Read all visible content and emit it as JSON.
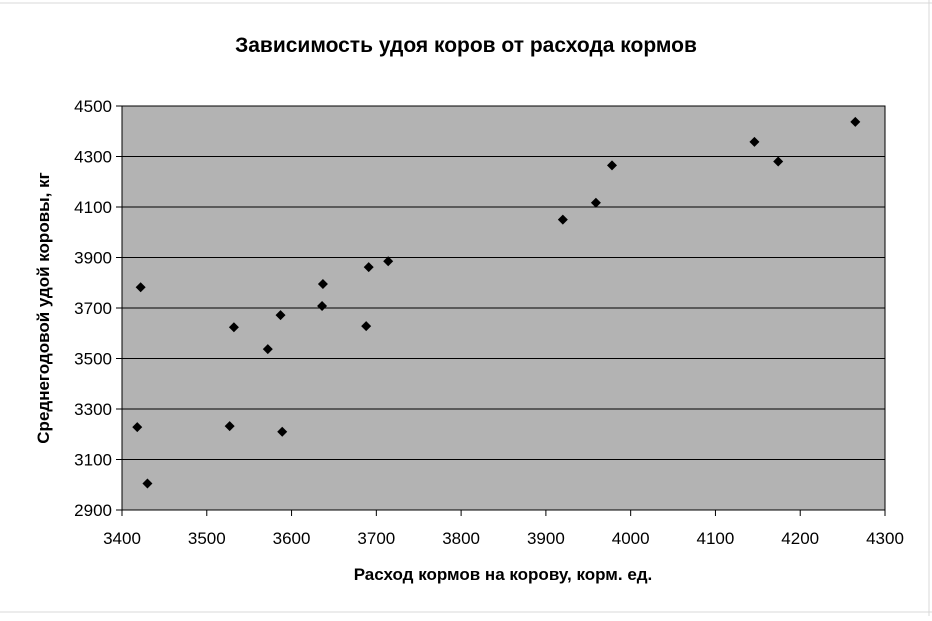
{
  "chart_data": {
    "type": "scatter",
    "title": "Зависимость удоя коров от расхода кормов",
    "xlabel": "Расход кормов на корову, корм. ед.",
    "ylabel": "Среднегодовой удой коровы, кг",
    "xlim": [
      3400,
      4300
    ],
    "ylim": [
      2900,
      4500
    ],
    "xticks": [
      3400,
      3500,
      3600,
      3700,
      3800,
      3900,
      4000,
      4100,
      4200,
      4300
    ],
    "yticks": [
      2900,
      3100,
      3300,
      3500,
      3700,
      3900,
      4100,
      4300,
      4500
    ],
    "grid": "horizontal",
    "plot_background": "#b3b3b3",
    "marker_color": "#000000",
    "marker": "diamond",
    "points": [
      {
        "x": 3418,
        "y": 3228
      },
      {
        "x": 3422,
        "y": 3782
      },
      {
        "x": 3430,
        "y": 3005
      },
      {
        "x": 3527,
        "y": 3232
      },
      {
        "x": 3532,
        "y": 3624
      },
      {
        "x": 3572,
        "y": 3537
      },
      {
        "x": 3587,
        "y": 3672
      },
      {
        "x": 3589,
        "y": 3210
      },
      {
        "x": 3636,
        "y": 3708
      },
      {
        "x": 3637,
        "y": 3795
      },
      {
        "x": 3688,
        "y": 3628
      },
      {
        "x": 3691,
        "y": 3862
      },
      {
        "x": 3714,
        "y": 3885
      },
      {
        "x": 3920,
        "y": 4050
      },
      {
        "x": 3959,
        "y": 4117
      },
      {
        "x": 3978,
        "y": 4265
      },
      {
        "x": 4146,
        "y": 4358
      },
      {
        "x": 4174,
        "y": 4280
      },
      {
        "x": 4265,
        "y": 4437
      }
    ]
  }
}
